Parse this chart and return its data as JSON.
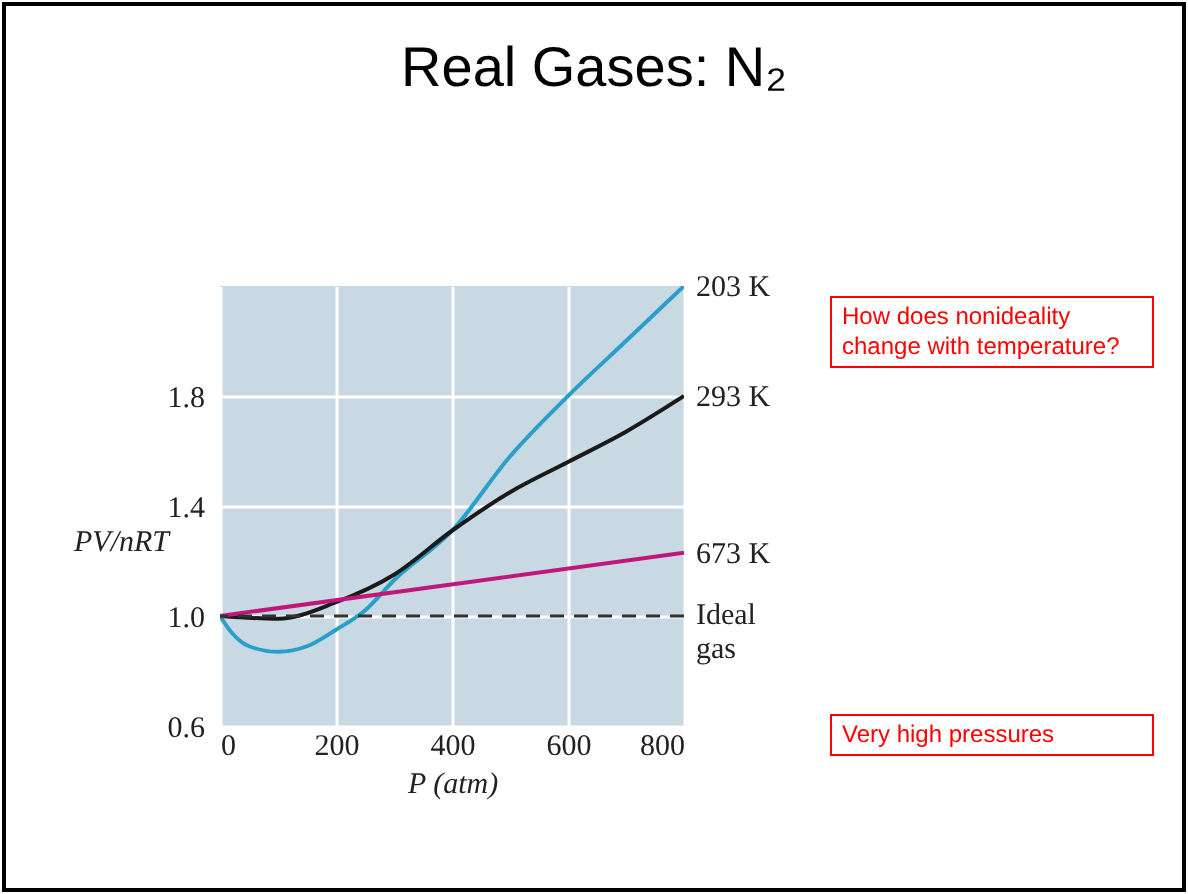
{
  "chart_data": {
    "type": "line",
    "title": "Real Gases: N₂",
    "xlabel": "P (atm)",
    "ylabel": "PV/nRT",
    "xlim": [
      0,
      800
    ],
    "xticks": [
      0,
      200,
      400,
      600,
      800
    ],
    "ylim": [
      0.6,
      2.2
    ],
    "yticks": [
      {
        "value": 0.6,
        "label": "0.6"
      },
      {
        "value": 1.0,
        "label": "1.0"
      },
      {
        "value": 1.4,
        "label": "1.4"
      },
      {
        "value": 1.8,
        "label": "1.8"
      }
    ],
    "grid": true,
    "line_style": "solid",
    "series": [
      {
        "name": "203 K",
        "color": "#2a9fc9",
        "x": [
          0,
          20,
          50,
          100,
          150,
          200,
          250,
          300,
          400,
          500,
          600,
          700,
          800
        ],
        "values": [
          1.0,
          0.94,
          0.89,
          0.87,
          0.89,
          0.95,
          1.02,
          1.13,
          1.31,
          1.58,
          1.8,
          2.0,
          2.2
        ]
      },
      {
        "name": "293 K",
        "color": "#1a1a1a",
        "x": [
          0,
          100,
          200,
          300,
          400,
          500,
          600,
          700,
          800
        ],
        "values": [
          1.0,
          0.99,
          1.05,
          1.15,
          1.31,
          1.45,
          1.56,
          1.67,
          1.8
        ]
      },
      {
        "name": "673 K",
        "color": "#c0187a",
        "x": [
          0,
          800
        ],
        "values": [
          1.0,
          1.23
        ]
      }
    ],
    "ref_lines": [
      {
        "axis": "y",
        "value": 1.0,
        "label": "Ideal gas",
        "color": "#333333",
        "line_style": "dashed"
      }
    ],
    "annotations": [
      "How does nonideality change with temperature?",
      "Very high pressures"
    ]
  }
}
